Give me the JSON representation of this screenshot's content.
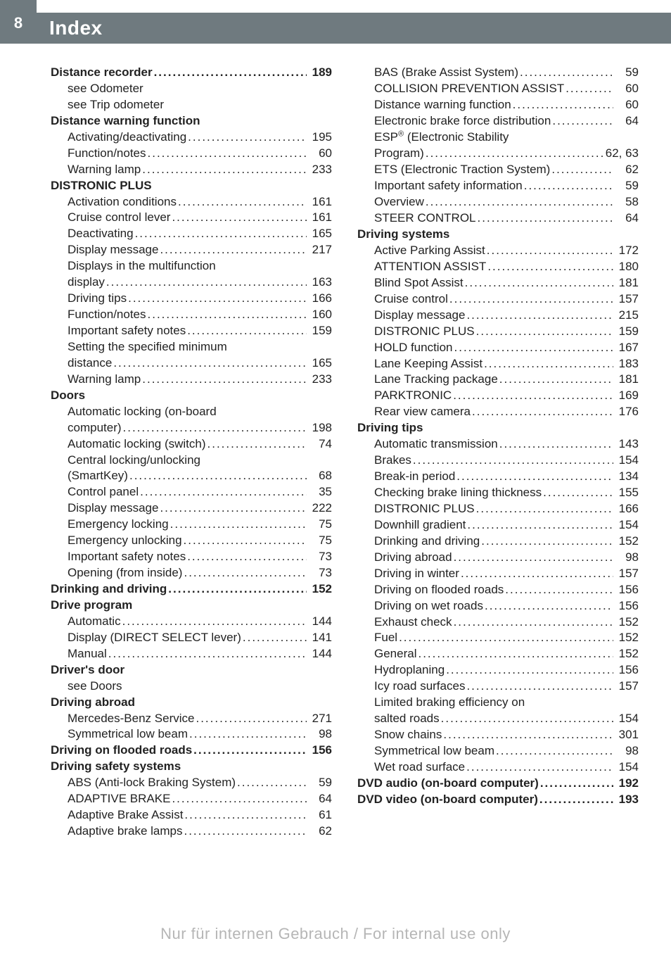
{
  "header": {
    "page_number": "8",
    "title": "Index"
  },
  "footer": "Nur für internen Gebrauch / For internal use only",
  "left": [
    {
      "type": "row",
      "bold": true,
      "indent": 0,
      "label": "Distance recorder",
      "page": "189"
    },
    {
      "type": "text",
      "indent": 1,
      "label": "see Odometer"
    },
    {
      "type": "text",
      "indent": 1,
      "label": "see Trip odometer"
    },
    {
      "type": "text",
      "bold": true,
      "indent": 0,
      "label": "Distance warning function"
    },
    {
      "type": "row",
      "indent": 1,
      "label": "Activating/deactivating",
      "page": "195"
    },
    {
      "type": "row",
      "indent": 1,
      "label": "Function/notes",
      "page": "60"
    },
    {
      "type": "row",
      "indent": 1,
      "label": "Warning lamp",
      "page": "233"
    },
    {
      "type": "text",
      "bold": true,
      "indent": 0,
      "label": "DISTRONIC PLUS"
    },
    {
      "type": "row",
      "indent": 1,
      "label": "Activation conditions",
      "page": "161"
    },
    {
      "type": "row",
      "indent": 1,
      "label": "Cruise control lever",
      "page": "161"
    },
    {
      "type": "row",
      "indent": 1,
      "label": "Deactivating",
      "page": "165"
    },
    {
      "type": "row",
      "indent": 1,
      "label": "Display message",
      "page": "217"
    },
    {
      "type": "text",
      "indent": 1,
      "label": "Displays in the multifunction"
    },
    {
      "type": "row",
      "indent": 1,
      "label": "display",
      "page": "163"
    },
    {
      "type": "row",
      "indent": 1,
      "label": "Driving tips",
      "page": "166"
    },
    {
      "type": "row",
      "indent": 1,
      "label": "Function/notes",
      "page": "160"
    },
    {
      "type": "row",
      "indent": 1,
      "label": "Important safety notes",
      "page": "159"
    },
    {
      "type": "text",
      "indent": 1,
      "label": "Setting the specified minimum"
    },
    {
      "type": "row",
      "indent": 1,
      "label": "distance",
      "page": "165"
    },
    {
      "type": "row",
      "indent": 1,
      "label": "Warning lamp",
      "page": "233"
    },
    {
      "type": "text",
      "bold": true,
      "indent": 0,
      "label": "Doors"
    },
    {
      "type": "text",
      "indent": 1,
      "label": "Automatic locking (on-board"
    },
    {
      "type": "row",
      "indent": 1,
      "label": "computer)",
      "page": "198"
    },
    {
      "type": "row",
      "indent": 1,
      "label": "Automatic locking (switch)",
      "page": "74"
    },
    {
      "type": "text",
      "indent": 1,
      "label": "Central locking/unlocking"
    },
    {
      "type": "row",
      "indent": 1,
      "label": "(SmartKey)",
      "page": "68"
    },
    {
      "type": "row",
      "indent": 1,
      "label": "Control panel",
      "page": "35"
    },
    {
      "type": "row",
      "indent": 1,
      "label": "Display message",
      "page": "222"
    },
    {
      "type": "row",
      "indent": 1,
      "label": "Emergency locking",
      "page": "75"
    },
    {
      "type": "row",
      "indent": 1,
      "label": "Emergency unlocking",
      "page": "75"
    },
    {
      "type": "row",
      "indent": 1,
      "label": "Important safety notes",
      "page": "73"
    },
    {
      "type": "row",
      "indent": 1,
      "label": "Opening (from inside)",
      "page": "73"
    },
    {
      "type": "row",
      "bold": true,
      "indent": 0,
      "label": "Drinking and driving",
      "page": "152"
    },
    {
      "type": "text",
      "bold": true,
      "indent": 0,
      "label": "Drive program"
    },
    {
      "type": "row",
      "indent": 1,
      "label": "Automatic",
      "page": "144"
    },
    {
      "type": "row",
      "indent": 1,
      "label": "Display (DIRECT SELECT lever)",
      "page": "141"
    },
    {
      "type": "row",
      "indent": 1,
      "label": "Manual",
      "page": "144"
    },
    {
      "type": "text",
      "bold": true,
      "indent": 0,
      "label": "Driver's door"
    },
    {
      "type": "text",
      "indent": 1,
      "label": "see Doors"
    },
    {
      "type": "text",
      "bold": true,
      "indent": 0,
      "label": "Driving abroad"
    },
    {
      "type": "row",
      "indent": 1,
      "label": "Mercedes-Benz Service",
      "page": "271"
    },
    {
      "type": "row",
      "indent": 1,
      "label": "Symmetrical low beam",
      "page": "98"
    },
    {
      "type": "row",
      "bold": true,
      "indent": 0,
      "label": "Driving on flooded roads",
      "page": "156"
    },
    {
      "type": "text",
      "bold": true,
      "indent": 0,
      "label": "Driving safety systems"
    },
    {
      "type": "row",
      "indent": 1,
      "label": "ABS (Anti-lock Braking System)",
      "page": "59"
    },
    {
      "type": "row",
      "indent": 1,
      "label": "ADAPTIVE BRAKE",
      "page": "64"
    },
    {
      "type": "row",
      "indent": 1,
      "label": "Adaptive Brake Assist",
      "page": "61"
    },
    {
      "type": "row",
      "indent": 1,
      "label": "Adaptive brake lamps",
      "page": "62"
    }
  ],
  "right": [
    {
      "type": "row",
      "indent": 1,
      "label": "BAS (Brake Assist System)",
      "page": "59"
    },
    {
      "type": "row",
      "indent": 1,
      "label": "COLLISION PREVENTION ASSIST",
      "page": "60"
    },
    {
      "type": "row",
      "indent": 1,
      "label": "Distance warning function",
      "page": "60"
    },
    {
      "type": "row",
      "indent": 1,
      "label": "Electronic brake force distribution",
      "page": "64"
    },
    {
      "type": "text",
      "indent": 1,
      "label": "ESP® (Electronic Stability",
      "sup": true
    },
    {
      "type": "row",
      "indent": 1,
      "label": "Program)",
      "page": "62, 63"
    },
    {
      "type": "row",
      "indent": 1,
      "label": "ETS (Electronic Traction System)",
      "page": "62"
    },
    {
      "type": "row",
      "indent": 1,
      "label": "Important safety information",
      "page": "59"
    },
    {
      "type": "row",
      "indent": 1,
      "label": "Overview",
      "page": "58"
    },
    {
      "type": "row",
      "indent": 1,
      "label": "STEER CONTROL",
      "page": "64"
    },
    {
      "type": "text",
      "bold": true,
      "indent": 0,
      "label": "Driving systems"
    },
    {
      "type": "row",
      "indent": 1,
      "label": "Active Parking Assist",
      "page": "172"
    },
    {
      "type": "row",
      "indent": 1,
      "label": "ATTENTION ASSIST",
      "page": "180"
    },
    {
      "type": "row",
      "indent": 1,
      "label": "Blind Spot Assist",
      "page": "181"
    },
    {
      "type": "row",
      "indent": 1,
      "label": "Cruise control",
      "page": "157"
    },
    {
      "type": "row",
      "indent": 1,
      "label": "Display message",
      "page": "215"
    },
    {
      "type": "row",
      "indent": 1,
      "label": "DISTRONIC PLUS",
      "page": "159"
    },
    {
      "type": "row",
      "indent": 1,
      "label": "HOLD function",
      "page": "167"
    },
    {
      "type": "row",
      "indent": 1,
      "label": "Lane Keeping Assist",
      "page": "183"
    },
    {
      "type": "row",
      "indent": 1,
      "label": "Lane Tracking package",
      "page": "181"
    },
    {
      "type": "row",
      "indent": 1,
      "label": "PARKTRONIC",
      "page": "169"
    },
    {
      "type": "row",
      "indent": 1,
      "label": "Rear view camera",
      "page": "176"
    },
    {
      "type": "text",
      "bold": true,
      "indent": 0,
      "label": "Driving tips"
    },
    {
      "type": "row",
      "indent": 1,
      "label": "Automatic transmission",
      "page": "143"
    },
    {
      "type": "row",
      "indent": 1,
      "label": "Brakes",
      "page": "154"
    },
    {
      "type": "row",
      "indent": 1,
      "label": "Break-in period",
      "page": "134"
    },
    {
      "type": "row",
      "indent": 1,
      "label": "Checking brake lining thickness",
      "page": "155"
    },
    {
      "type": "row",
      "indent": 1,
      "label": "DISTRONIC PLUS",
      "page": "166"
    },
    {
      "type": "row",
      "indent": 1,
      "label": "Downhill gradient",
      "page": "154"
    },
    {
      "type": "row",
      "indent": 1,
      "label": "Drinking and driving",
      "page": "152"
    },
    {
      "type": "row",
      "indent": 1,
      "label": "Driving abroad",
      "page": "98"
    },
    {
      "type": "row",
      "indent": 1,
      "label": "Driving in winter",
      "page": "157"
    },
    {
      "type": "row",
      "indent": 1,
      "label": "Driving on flooded roads",
      "page": "156"
    },
    {
      "type": "row",
      "indent": 1,
      "label": "Driving on wet roads",
      "page": "156"
    },
    {
      "type": "row",
      "indent": 1,
      "label": "Exhaust check",
      "page": "152"
    },
    {
      "type": "row",
      "indent": 1,
      "label": "Fuel",
      "page": "152"
    },
    {
      "type": "row",
      "indent": 1,
      "label": "General",
      "page": "152"
    },
    {
      "type": "row",
      "indent": 1,
      "label": "Hydroplaning",
      "page": "156"
    },
    {
      "type": "row",
      "indent": 1,
      "label": "Icy road surfaces",
      "page": "157"
    },
    {
      "type": "text",
      "indent": 1,
      "label": "Limited braking efficiency on"
    },
    {
      "type": "row",
      "indent": 1,
      "label": "salted roads",
      "page": "154"
    },
    {
      "type": "row",
      "indent": 1,
      "label": "Snow chains",
      "page": "301"
    },
    {
      "type": "row",
      "indent": 1,
      "label": "Symmetrical low beam",
      "page": "98"
    },
    {
      "type": "row",
      "indent": 1,
      "label": "Wet road surface",
      "page": "154"
    },
    {
      "type": "row",
      "bold": true,
      "indent": 0,
      "label": "DVD audio (on-board computer)",
      "page": "192"
    },
    {
      "type": "row",
      "bold": true,
      "indent": 0,
      "label": "DVD video (on-board computer)",
      "page": "193"
    }
  ]
}
